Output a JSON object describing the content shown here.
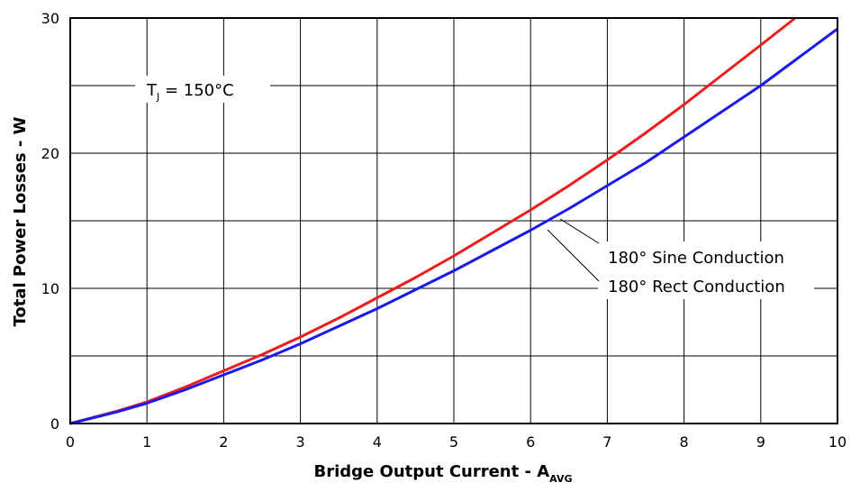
{
  "chart_data": {
    "type": "line",
    "x_axis": {
      "label_main": "Bridge Output Current - A",
      "label_sub": "AVG",
      "range": [
        0,
        10
      ],
      "tick_labels": [
        "0",
        "1",
        "2",
        "3",
        "4",
        "5",
        "6",
        "7",
        "8",
        "9",
        "10"
      ],
      "grid_step": 1
    },
    "y_axis": {
      "label": "Total Power Losses - W",
      "range": [
        0,
        30
      ],
      "tick_labels": [
        "0",
        "10",
        "20",
        "30"
      ],
      "labeled_ticks": [
        0,
        10,
        20,
        30
      ],
      "grid_step": 5
    },
    "grid": true,
    "annotation": {
      "prefix": "T",
      "sub": "J",
      "suffix": " = 150°C"
    },
    "series": [
      {
        "name": "180° Sine Conduction",
        "color": "#ee1c1c",
        "x": [
          0,
          0.6,
          1,
          1.5,
          2,
          2.5,
          3,
          3.5,
          4,
          4.5,
          5,
          5.5,
          6,
          6.5,
          7,
          7.5,
          8,
          8.5,
          9,
          9.45
        ],
        "y": [
          0,
          0.9,
          1.6,
          2.7,
          3.9,
          5.1,
          6.4,
          7.8,
          9.3,
          10.8,
          12.4,
          14.1,
          15.8,
          17.6,
          19.5,
          21.5,
          23.6,
          25.8,
          28.0,
          30.0
        ]
      },
      {
        "name": "180° Rect Conduction",
        "color": "#1a1aee",
        "x": [
          0,
          0.6,
          1,
          1.5,
          2,
          2.5,
          3,
          3.5,
          4,
          4.5,
          5,
          5.5,
          6,
          6.5,
          7,
          7.5,
          8,
          8.5,
          9,
          9.5,
          10
        ],
        "y": [
          0,
          0.85,
          1.5,
          2.5,
          3.6,
          4.7,
          5.9,
          7.2,
          8.5,
          9.9,
          11.3,
          12.8,
          14.3,
          15.9,
          17.6,
          19.3,
          21.2,
          23.1,
          25.0,
          27.1,
          29.2
        ]
      }
    ]
  }
}
